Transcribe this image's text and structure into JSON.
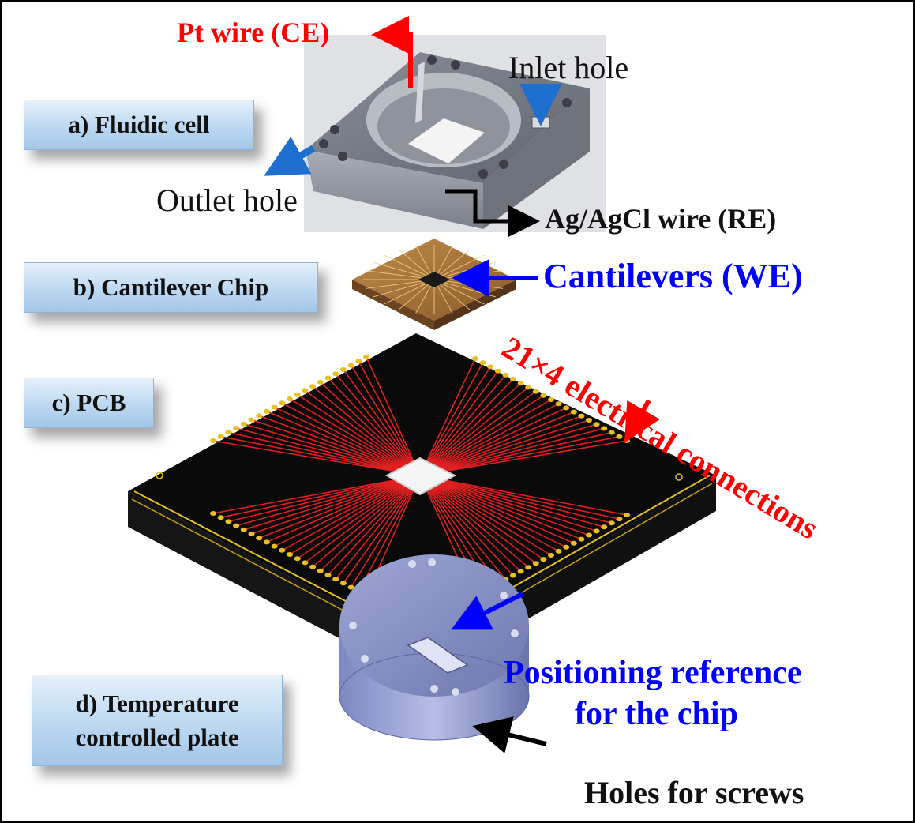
{
  "boxes": {
    "fluidic_cell": "a) Fluidic cell",
    "cantilever_chip": "b) Cantilever Chip",
    "pcb": "c) PCB",
    "plate_line1": "d) Temperature",
    "plate_line2": "controlled plate"
  },
  "labels": {
    "pt_wire": "Pt wire (CE)",
    "inlet_hole": "Inlet hole",
    "outlet_hole": "Outlet hole",
    "ag_wire": "Ag/AgCl  wire (RE)",
    "cantilevers": "Cantilevers (WE)",
    "connections": "21×4 electrical connections",
    "positioning_line1": "Positioning reference",
    "positioning_line2": "for the chip",
    "holes_screws": "Holes for screws"
  },
  "colors": {
    "red": "#ff0000",
    "blue": "#0000ff",
    "arrow_blue": "#1f6fd1",
    "pcb": "#0a0a0a",
    "trace": "#e02020",
    "pad": "#e8c020"
  }
}
